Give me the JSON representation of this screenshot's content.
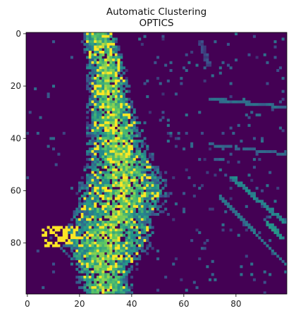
{
  "title_line1": "Automatic Clustering",
  "title_line2": "OPTICS",
  "chart_data": {
    "type": "heatmap",
    "title": "Automatic Clustering\nOPTICS",
    "grid_size": [
      100,
      100
    ],
    "xlim": [
      -0.5,
      99.5
    ],
    "ylim": [
      99.5,
      -0.5
    ],
    "x_ticks": [
      0,
      20,
      40,
      60,
      80
    ],
    "y_ticks": [
      0,
      20,
      40,
      60,
      80
    ],
    "x_tick_labels": [
      "0",
      "20",
      "40",
      "60",
      "80"
    ],
    "y_tick_labels": [
      "0",
      "20",
      "40",
      "60",
      "80"
    ],
    "xlabel": "",
    "ylabel": "",
    "colormap": "viridis",
    "colormap_stops": [
      "#440154",
      "#3b528b",
      "#21918c",
      "#5ec962",
      "#fde725"
    ],
    "background_value": 0.0,
    "main_band_center_by_row": [
      [
        0,
        27
      ],
      [
        10,
        30
      ],
      [
        20,
        31
      ],
      [
        30,
        32
      ],
      [
        40,
        34
      ],
      [
        50,
        36
      ],
      [
        60,
        37
      ],
      [
        70,
        34
      ],
      [
        80,
        30
      ],
      [
        90,
        29
      ],
      [
        99,
        30
      ]
    ],
    "main_band_halfwidth_by_row": [
      [
        0,
        6
      ],
      [
        20,
        7
      ],
      [
        40,
        10
      ],
      [
        50,
        12
      ],
      [
        60,
        16
      ],
      [
        70,
        15
      ],
      [
        80,
        16
      ],
      [
        90,
        10
      ],
      [
        99,
        9
      ]
    ],
    "streaks": [
      {
        "from": [
          25,
          70
        ],
        "to": [
          28,
          98
        ],
        "value": 0.35,
        "width": 1.2
      },
      {
        "from": [
          42,
          68
        ],
        "to": [
          46,
          99
        ],
        "value": 0.32,
        "width": 1.0
      },
      {
        "from": [
          55,
          78
        ],
        "to": [
          72,
          98
        ],
        "value": 0.45,
        "width": 1.6
      },
      {
        "from": [
          62,
          74
        ],
        "to": [
          88,
          99
        ],
        "value": 0.38,
        "width": 1.0
      },
      {
        "from": [
          3,
          66
        ],
        "to": [
          12,
          69
        ],
        "value": 0.22,
        "width": 1.5
      },
      {
        "from": [
          72,
          92
        ],
        "to": [
          78,
          97
        ],
        "value": 0.5,
        "width": 2.0
      }
    ],
    "seed": 17
  }
}
